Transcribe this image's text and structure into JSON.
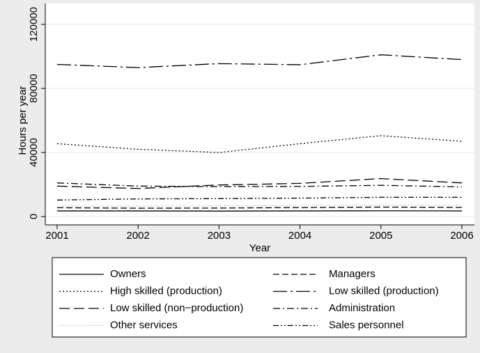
{
  "chart_data": {
    "type": "line",
    "x_label": "Year",
    "y_label": "Hours per year",
    "x": [
      2001,
      2002,
      2003,
      2004,
      2005,
      2006
    ],
    "xlim": [
      2001,
      2006
    ],
    "xticks": [
      2001,
      2002,
      2003,
      2004,
      2005,
      2006
    ],
    "ylim": [
      0,
      120000
    ],
    "yticks": [
      0,
      40000,
      80000,
      120000
    ],
    "grid": true,
    "legend": "bottom",
    "series": [
      {
        "name": "Owners",
        "color": "#000000",
        "dash": "none",
        "values": [
          3500,
          3500,
          3400,
          3500,
          3600,
          3500
        ]
      },
      {
        "name": "Managers",
        "color": "#000000",
        "dash": "9,4",
        "values": [
          5500,
          5200,
          5300,
          5600,
          5900,
          5700
        ]
      },
      {
        "name": "High skilled (production)",
        "color": "#000000",
        "dash": "2,3",
        "values": [
          45500,
          42000,
          40000,
          45500,
          50500,
          47000
        ]
      },
      {
        "name": "Low skilled (production)",
        "color": "#000000",
        "dash": "20,5,3,5",
        "values": [
          95000,
          93000,
          95500,
          94800,
          101000,
          98000
        ]
      },
      {
        "name": "Low skilled (non−production)",
        "color": "#000000",
        "dash": "15,6",
        "values": [
          19000,
          17500,
          19700,
          20700,
          23700,
          21000
        ]
      },
      {
        "name": "Administration",
        "color": "#000000",
        "dash": "10,4,2,4",
        "values": [
          21000,
          19000,
          18700,
          18800,
          19500,
          18500
        ]
      },
      {
        "name": "Other services",
        "color": "#b0b0b0",
        "dash": "1,2",
        "values": [
          6500,
          6500,
          6700,
          6800,
          7200,
          7000
        ]
      },
      {
        "name": "Sales personnel",
        "color": "#000000",
        "dash": "8,3,2,3,2,3",
        "values": [
          10300,
          11000,
          11200,
          11500,
          12000,
          12000
        ]
      }
    ]
  }
}
